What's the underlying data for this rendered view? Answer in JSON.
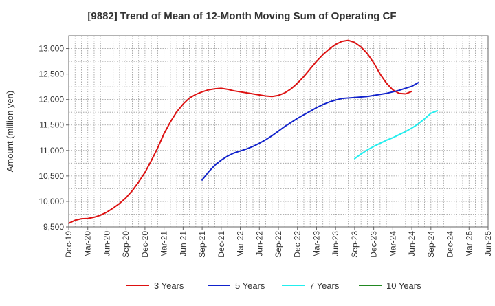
{
  "chart_data": {
    "type": "line",
    "title": "[9882]  Trend of Mean of 12-Month Moving Sum of Operating CF",
    "xlabel": "",
    "ylabel": "Amount (million yen)",
    "ylim": [
      9500,
      13250
    ],
    "yticks": [
      9500,
      10000,
      10500,
      11000,
      11500,
      12000,
      12500,
      13000
    ],
    "ytick_labels": [
      "9,500",
      "10,000",
      "10,500",
      "11,000",
      "11,500",
      "12,000",
      "12,500",
      "13,000"
    ],
    "x_range": [
      0,
      66
    ],
    "xticks": [
      0,
      3,
      6,
      9,
      12,
      15,
      18,
      21,
      24,
      27,
      30,
      33,
      36,
      39,
      42,
      45,
      48,
      51,
      54,
      57,
      60,
      63,
      66
    ],
    "xtick_labels": [
      "Dec-19",
      "Mar-20",
      "Jun-20",
      "Sep-20",
      "Dec-20",
      "Mar-21",
      "Jun-21",
      "Sep-21",
      "Dec-21",
      "Mar-22",
      "Jun-22",
      "Sep-22",
      "Dec-22",
      "Mar-23",
      "Jun-23",
      "Sep-23",
      "Dec-23",
      "Mar-24",
      "Jun-24",
      "Sep-24",
      "Dec-24",
      "Mar-25",
      "Jun-25"
    ],
    "grid": true,
    "legend_position": "bottom",
    "series": [
      {
        "name": "3 Years",
        "color": "#dd1111",
        "points": [
          [
            0,
            9570
          ],
          [
            1,
            9630
          ],
          [
            2,
            9660
          ],
          [
            3,
            9665
          ],
          [
            4,
            9690
          ],
          [
            5,
            9730
          ],
          [
            6,
            9790
          ],
          [
            7,
            9870
          ],
          [
            8,
            9960
          ],
          [
            9,
            10070
          ],
          [
            10,
            10210
          ],
          [
            11,
            10380
          ],
          [
            12,
            10570
          ],
          [
            13,
            10800
          ],
          [
            14,
            11050
          ],
          [
            15,
            11330
          ],
          [
            16,
            11560
          ],
          [
            17,
            11760
          ],
          [
            18,
            11910
          ],
          [
            19,
            12030
          ],
          [
            20,
            12100
          ],
          [
            21,
            12150
          ],
          [
            22,
            12190
          ],
          [
            23,
            12210
          ],
          [
            24,
            12220
          ],
          [
            25,
            12200
          ],
          [
            26,
            12170
          ],
          [
            27,
            12150
          ],
          [
            28,
            12130
          ],
          [
            29,
            12110
          ],
          [
            30,
            12090
          ],
          [
            31,
            12070
          ],
          [
            32,
            12060
          ],
          [
            33,
            12080
          ],
          [
            34,
            12130
          ],
          [
            35,
            12210
          ],
          [
            36,
            12320
          ],
          [
            37,
            12450
          ],
          [
            38,
            12600
          ],
          [
            39,
            12750
          ],
          [
            40,
            12880
          ],
          [
            41,
            12990
          ],
          [
            42,
            13080
          ],
          [
            43,
            13140
          ],
          [
            44,
            13160
          ],
          [
            45,
            13120
          ],
          [
            46,
            13030
          ],
          [
            47,
            12900
          ],
          [
            48,
            12720
          ],
          [
            49,
            12500
          ],
          [
            50,
            12320
          ],
          [
            51,
            12190
          ],
          [
            52,
            12120
          ],
          [
            53,
            12110
          ],
          [
            54,
            12160
          ]
        ]
      },
      {
        "name": "5 Years",
        "color": "#1122cc",
        "points": [
          [
            21,
            10420
          ],
          [
            22,
            10580
          ],
          [
            23,
            10710
          ],
          [
            24,
            10810
          ],
          [
            25,
            10890
          ],
          [
            26,
            10950
          ],
          [
            27,
            10990
          ],
          [
            28,
            11030
          ],
          [
            29,
            11080
          ],
          [
            30,
            11140
          ],
          [
            31,
            11210
          ],
          [
            32,
            11290
          ],
          [
            33,
            11380
          ],
          [
            34,
            11470
          ],
          [
            35,
            11550
          ],
          [
            36,
            11630
          ],
          [
            37,
            11700
          ],
          [
            38,
            11770
          ],
          [
            39,
            11840
          ],
          [
            40,
            11900
          ],
          [
            41,
            11950
          ],
          [
            42,
            11990
          ],
          [
            43,
            12020
          ],
          [
            44,
            12030
          ],
          [
            45,
            12040
          ],
          [
            46,
            12050
          ],
          [
            47,
            12060
          ],
          [
            48,
            12080
          ],
          [
            49,
            12100
          ],
          [
            50,
            12120
          ],
          [
            51,
            12150
          ],
          [
            52,
            12180
          ],
          [
            53,
            12220
          ],
          [
            54,
            12260
          ],
          [
            55,
            12330
          ]
        ]
      },
      {
        "name": "7 Years",
        "color": "#22eeee",
        "points": [
          [
            45,
            10840
          ],
          [
            46,
            10930
          ],
          [
            47,
            11010
          ],
          [
            48,
            11080
          ],
          [
            49,
            11140
          ],
          [
            50,
            11200
          ],
          [
            51,
            11250
          ],
          [
            52,
            11310
          ],
          [
            53,
            11370
          ],
          [
            54,
            11440
          ],
          [
            55,
            11520
          ],
          [
            56,
            11620
          ],
          [
            57,
            11730
          ],
          [
            58,
            11780
          ]
        ]
      },
      {
        "name": "10 Years",
        "color": "#228822",
        "points": []
      }
    ]
  }
}
